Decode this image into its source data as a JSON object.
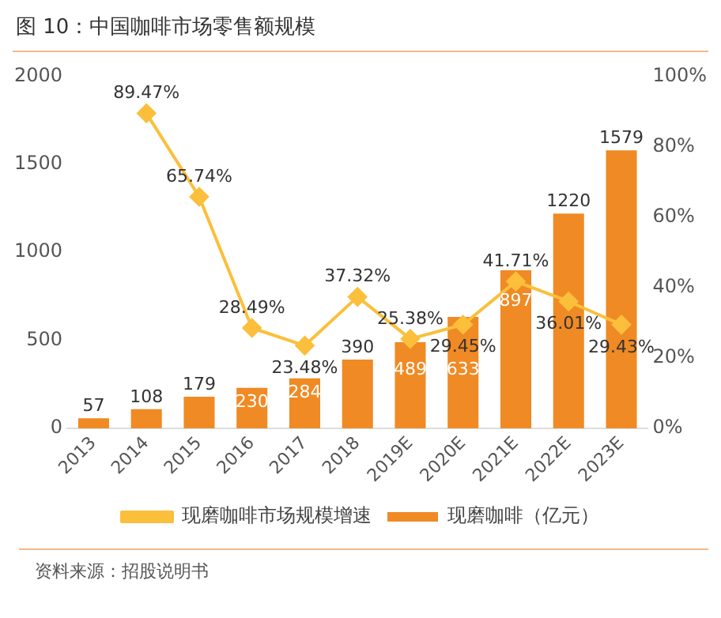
{
  "chart_data": {
    "type": "bar",
    "title": "图 10：中国咖啡市场零售额规模",
    "categories": [
      "2013",
      "2014",
      "2015",
      "2016",
      "2017",
      "2018",
      "2019E",
      "2020E",
      "2021E",
      "2022E",
      "2023E"
    ],
    "series": [
      {
        "name": "现磨咖啡（亿元）",
        "color": "#f08a24",
        "values": [
          57,
          108,
          179,
          230,
          284,
          390,
          489,
          633,
          897,
          1220,
          1579
        ],
        "value_labels": [
          "57",
          "108",
          "179",
          "230",
          "284",
          "390",
          "489",
          "633",
          "897",
          "1220",
          "1579"
        ]
      },
      {
        "name": "现磨咖啡市场规模增速",
        "type": "line",
        "axis": "y2",
        "color": "#fbbf3c",
        "values": [
          null,
          89.47,
          65.74,
          28.49,
          23.48,
          37.32,
          25.38,
          29.45,
          41.71,
          36.01,
          29.43
        ],
        "value_labels": [
          null,
          "89.47%",
          "65.74%",
          "28.49%",
          "23.48%",
          "37.32%",
          "25.38%",
          "29.45%",
          "41.71%",
          "36.01%",
          "29.43%"
        ]
      }
    ],
    "ylim": [
      0,
      2000
    ],
    "yticks": [
      0,
      500,
      1000,
      1500,
      2000
    ],
    "y2lim": [
      0,
      100
    ],
    "y2ticks": [
      {
        "value": 0,
        "label": "0%"
      },
      {
        "value": 20,
        "label": "20%"
      },
      {
        "value": 40,
        "label": "40%"
      },
      {
        "value": 60,
        "label": "60%"
      },
      {
        "value": 80,
        "label": "80%"
      },
      {
        "value": 100,
        "label": "100%"
      }
    ],
    "legend": "bottom",
    "marker": "diamond",
    "annotations": [
      "资料来源：招股说明书"
    ]
  }
}
